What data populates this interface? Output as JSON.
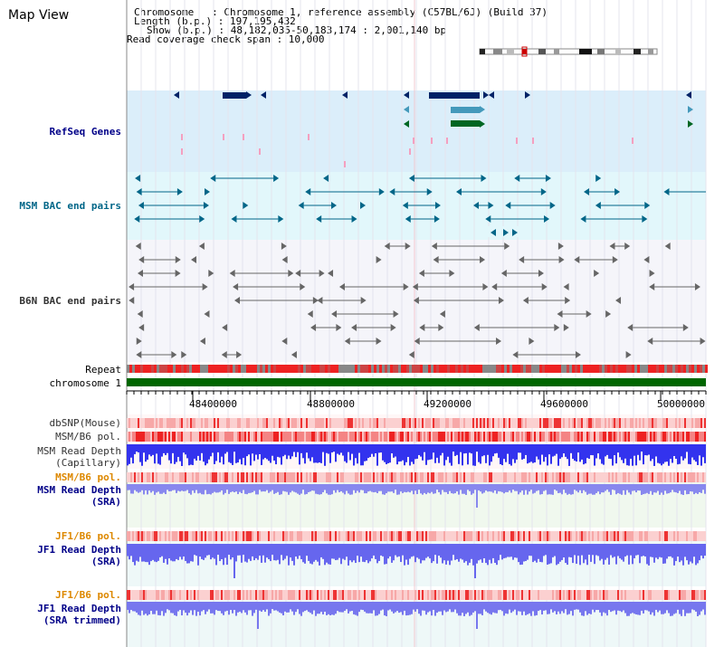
{
  "page": {
    "title": "Map View"
  },
  "info": {
    "chromosome": "Chromosome   : Chromosome 1, reference assembly (C57BL/6J) (Build 37)",
    "length": "Length (b.p.) : 197,195,432",
    "show": "Show (b.p.) : 48,182,035-50,183,174 : 2,001,140 bp",
    "span": "Read coverage check span : 10,000"
  },
  "tracks": {
    "refseq": "RefSeq Genes",
    "msm_bac": "MSM BAC end pairs",
    "b6n_bac": "B6N BAC end pairs",
    "repeat": "Repeat",
    "chromosome": "chromosome 1",
    "dbsnp": "dbSNP(Mouse)",
    "msm_b6_pol_1": "MSM/B6 pol.",
    "msm_depth_cap": "MSM Read Depth\n(Capillary)",
    "msm_b6_pol_2": "MSM/B6 pol.",
    "msm_depth_sra": "MSM Read Depth\n(SRA)",
    "jf1_b6_pol_1": "JF1/B6 pol.",
    "jf1_depth_sra": "JF1 Read Depth\n(SRA)",
    "jf1_b6_pol_2": "JF1/B6 pol.",
    "jf1_depth_trim": "JF1 Read Depth\n(SRA trimmed)"
  },
  "axis": {
    "ticks": [
      "48400000",
      "48800000",
      "49200000",
      "49600000",
      "50000000"
    ]
  },
  "colors": {
    "refseq_bg": "#dbeefa",
    "msm_bg": "#e2f7fb",
    "b6n_bg": "#f5f5fa",
    "gene_dark": "#002266",
    "gene_mid": "#4499bb",
    "gene_green": "#006622",
    "msm_bac": "#006688",
    "b6n_bac": "#666666",
    "label_blue": "#000088",
    "label_orange": "#dd8800",
    "label_gray": "#333333",
    "chromosome": "#006600",
    "depth": "#4444ee",
    "depth_light": "#7777ee"
  }
}
